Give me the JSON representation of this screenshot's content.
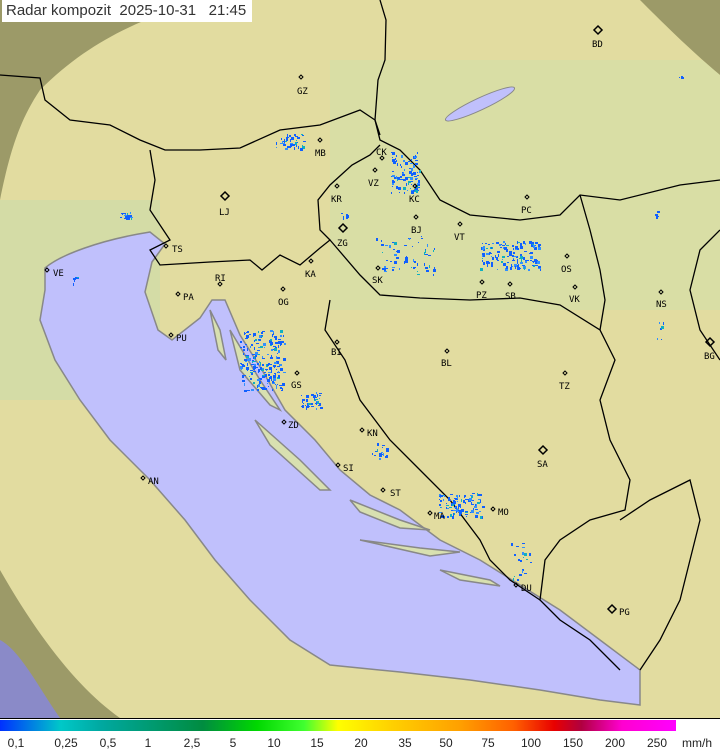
{
  "title": {
    "label": "Radar kompozit",
    "date": "2025-10-31",
    "time": "21:45"
  },
  "colors": {
    "land_inside": "#e2dca0",
    "land_outside": "#9c9a68",
    "sea_inside": "#c0c0fc",
    "sea_outside": "#8a8ac8",
    "border": "#000000",
    "rain_light": "#1060ff"
  },
  "cities": [
    {
      "code": "GZ",
      "major": false
    },
    {
      "code": "MB",
      "major": false
    },
    {
      "code": "CK",
      "major": false
    },
    {
      "code": "VZ",
      "major": false
    },
    {
      "code": "KR",
      "major": false
    },
    {
      "code": "KC",
      "major": false
    },
    {
      "code": "BJ",
      "major": false
    },
    {
      "code": "VT",
      "major": false
    },
    {
      "code": "PC",
      "major": false
    },
    {
      "code": "BD",
      "major": true
    },
    {
      "code": "LJ",
      "major": true
    },
    {
      "code": "ZG",
      "major": true
    },
    {
      "code": "TS",
      "major": false
    },
    {
      "code": "KA",
      "major": false
    },
    {
      "code": "SK",
      "major": false
    },
    {
      "code": "OS",
      "major": false
    },
    {
      "code": "PZ",
      "major": false
    },
    {
      "code": "SB",
      "major": false
    },
    {
      "code": "VK",
      "major": false
    },
    {
      "code": "NS",
      "major": false
    },
    {
      "code": "VE",
      "major": false
    },
    {
      "code": "RI",
      "major": false
    },
    {
      "code": "PA",
      "major": false
    },
    {
      "code": "OG",
      "major": false
    },
    {
      "code": "PU",
      "major": false
    },
    {
      "code": "BG",
      "major": true
    },
    {
      "code": "BI",
      "major": false
    },
    {
      "code": "BL",
      "major": false
    },
    {
      "code": "GS",
      "major": false
    },
    {
      "code": "TZ",
      "major": false
    },
    {
      "code": "ZD",
      "major": false
    },
    {
      "code": "KN",
      "major": false
    },
    {
      "code": "SA",
      "major": true
    },
    {
      "code": "SI",
      "major": false
    },
    {
      "code": "ST",
      "major": false
    },
    {
      "code": "AN",
      "major": false
    },
    {
      "code": "MA",
      "major": false
    },
    {
      "code": "MO",
      "major": false
    },
    {
      "code": "DU",
      "major": false
    },
    {
      "code": "PG",
      "major": true
    }
  ],
  "legend": {
    "unit": "mm/h",
    "ticks": [
      "0,1",
      "0,25",
      "0,5",
      "1",
      "2,5",
      "5",
      "10",
      "15",
      "20",
      "35",
      "50",
      "75",
      "100",
      "150",
      "200",
      "250"
    ]
  }
}
